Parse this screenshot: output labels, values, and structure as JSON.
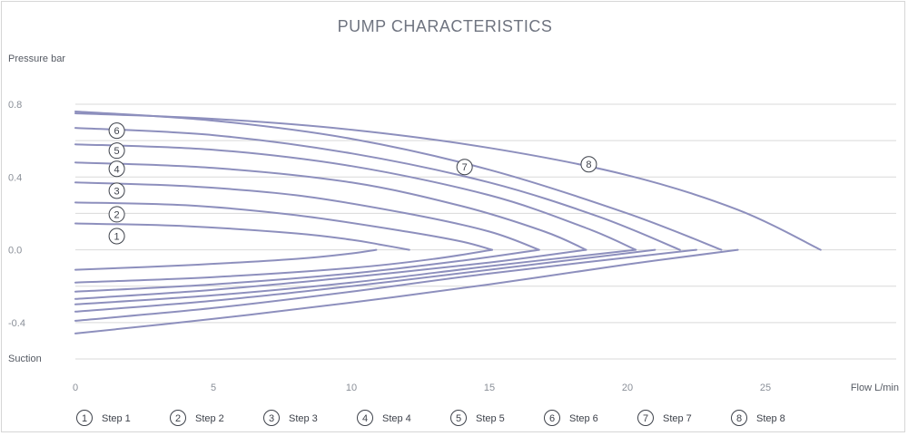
{
  "chart_data": {
    "type": "line",
    "title": "PUMP CHARACTERISTICS",
    "ylabel": "Pressure bar",
    "ylabel_bottom": "Suction",
    "xlabel": "Flow L/min",
    "xlim": [
      0,
      30
    ],
    "ylim": [
      -0.6,
      0.8
    ],
    "x_ticks": [
      0,
      5,
      10,
      15,
      20,
      25
    ],
    "x_tick_labels": [
      "0",
      "5",
      "10",
      "15",
      "20",
      "25"
    ],
    "y_ticks": [
      0.8,
      0.4,
      0.0,
      -0.4
    ],
    "y_tick_labels": [
      "0.8",
      "0.4",
      "0.0",
      "-0.4"
    ],
    "grid": true,
    "legend_position": "bottom",
    "line_color": "#8d8fbd",
    "series": [
      {
        "name": "Step 1",
        "marker": "1",
        "pressure": {
          "x": [
            0,
            4,
            8,
            10,
            11,
            12.1
          ],
          "y": [
            0.145,
            0.13,
            0.09,
            0.055,
            0.03,
            0.0
          ]
        },
        "suction": {
          "x": [
            0,
            4,
            8,
            10,
            10.9
          ],
          "y": [
            -0.11,
            -0.085,
            -0.05,
            -0.02,
            0.0
          ]
        }
      },
      {
        "name": "Step 2",
        "marker": "2",
        "pressure": {
          "x": [
            0,
            4,
            8,
            12,
            14,
            15.1
          ],
          "y": [
            0.26,
            0.245,
            0.19,
            0.1,
            0.045,
            0.0
          ]
        },
        "suction": {
          "x": [
            0,
            5,
            10,
            13,
            15.1
          ],
          "y": [
            -0.18,
            -0.15,
            -0.1,
            -0.05,
            0.0
          ]
        }
      },
      {
        "name": "Step 3",
        "marker": "3",
        "pressure": {
          "x": [
            0,
            4,
            8,
            12,
            15,
            16.8
          ],
          "y": [
            0.37,
            0.35,
            0.3,
            0.2,
            0.1,
            0.0
          ]
        },
        "suction": {
          "x": [
            0,
            5,
            10,
            14,
            16.8
          ],
          "y": [
            -0.23,
            -0.19,
            -0.13,
            -0.06,
            0.0
          ]
        }
      },
      {
        "name": "Step 4",
        "marker": "4",
        "pressure": {
          "x": [
            0,
            5,
            10,
            14,
            17,
            18.5
          ],
          "y": [
            0.48,
            0.45,
            0.37,
            0.24,
            0.1,
            0.0
          ]
        },
        "suction": {
          "x": [
            0,
            5,
            10,
            15,
            18.5
          ],
          "y": [
            -0.27,
            -0.22,
            -0.15,
            -0.07,
            0.0
          ]
        }
      },
      {
        "name": "Step 5",
        "marker": "5",
        "pressure": {
          "x": [
            0,
            5,
            10,
            15,
            18.5,
            20.3
          ],
          "y": [
            0.58,
            0.55,
            0.46,
            0.3,
            0.12,
            0.0
          ]
        },
        "suction": {
          "x": [
            0,
            5,
            10,
            15,
            20.3
          ],
          "y": [
            -0.3,
            -0.25,
            -0.18,
            -0.09,
            0.0
          ]
        }
      },
      {
        "name": "Step 6",
        "marker": "6",
        "pressure": {
          "x": [
            0,
            5,
            10,
            15,
            19,
            21.9
          ],
          "y": [
            0.67,
            0.63,
            0.53,
            0.37,
            0.18,
            0.0
          ]
        },
        "suction": {
          "x": [
            0,
            5,
            10,
            15,
            21
          ],
          "y": [
            -0.34,
            -0.28,
            -0.2,
            -0.11,
            0.0
          ]
        }
      },
      {
        "name": "Step 7",
        "marker": "7",
        "pressure": {
          "x": [
            0,
            5,
            10,
            15,
            20,
            23.4
          ],
          "y": [
            0.76,
            0.71,
            0.61,
            0.44,
            0.2,
            0.0
          ]
        },
        "suction": {
          "x": [
            0,
            5,
            10,
            15,
            22.5
          ],
          "y": [
            -0.39,
            -0.32,
            -0.23,
            -0.13,
            0.0
          ]
        }
      },
      {
        "name": "Step 8",
        "marker": "8",
        "pressure": {
          "x": [
            0,
            5,
            10,
            15,
            20,
            24,
            27
          ],
          "y": [
            0.75,
            0.72,
            0.66,
            0.56,
            0.41,
            0.22,
            0.0
          ]
        },
        "suction": {
          "x": [
            0,
            5,
            10,
            15,
            20,
            24
          ],
          "y": [
            -0.46,
            -0.38,
            -0.29,
            -0.19,
            -0.08,
            0.0
          ]
        }
      }
    ],
    "curve_markers": [
      {
        "label": "6",
        "x": 1.5,
        "y": 0.655
      },
      {
        "label": "5",
        "x": 1.5,
        "y": 0.545
      },
      {
        "label": "4",
        "x": 1.5,
        "y": 0.445
      },
      {
        "label": "3",
        "x": 1.5,
        "y": 0.325
      },
      {
        "label": "2",
        "x": 1.5,
        "y": 0.195
      },
      {
        "label": "1",
        "x": 1.5,
        "y": 0.075
      },
      {
        "label": "7",
        "x": 14.1,
        "y": 0.455
      },
      {
        "label": "8",
        "x": 18.6,
        "y": 0.47
      }
    ],
    "legend": [
      {
        "marker": "1",
        "label": "Step 1"
      },
      {
        "marker": "2",
        "label": "Step 2"
      },
      {
        "marker": "3",
        "label": "Step 3"
      },
      {
        "marker": "4",
        "label": "Step 4"
      },
      {
        "marker": "5",
        "label": "Step 5"
      },
      {
        "marker": "6",
        "label": "Step 6"
      },
      {
        "marker": "7",
        "label": "Step 7"
      },
      {
        "marker": "8",
        "label": "Step 8"
      }
    ]
  }
}
